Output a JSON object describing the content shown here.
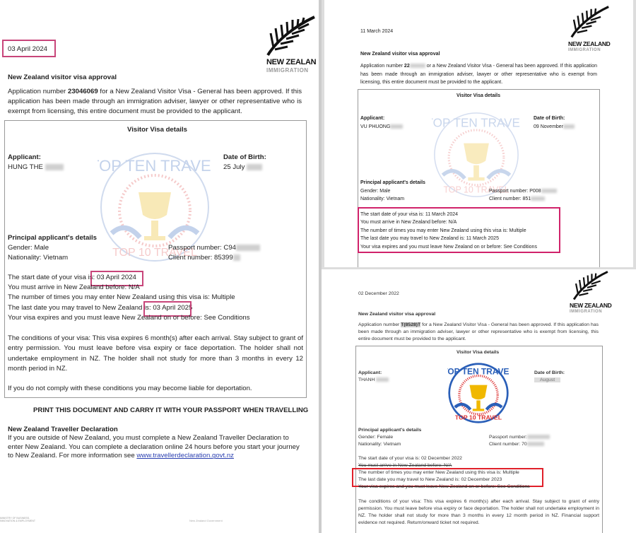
{
  "colors": {
    "highlight_pink": "#c8457a",
    "highlight_red": "#e0202a",
    "link": "#2a3fb0"
  },
  "logo": {
    "line1": "NEW ZEALAND",
    "line1_cropped": "NEW ZEALAN",
    "line2": "IMMIGRATION",
    "icon": "silver-fern-icon"
  },
  "watermark": {
    "top": "TOP TEN TRAVEL",
    "bottom": "TOP 10 TRAVEL",
    "icon": "trophy-icon"
  },
  "doc1": {
    "date": "03 April 2024",
    "title": "New Zealand visitor visa approval",
    "intro_prefix": "Application number ",
    "app_number": "23046069",
    "intro_rest": " for a New Zealand Visitor Visa - General has been approved. If this application has been made through an immigration adviser, lawyer or other representative who is exempt from licensing, this entire document must be provided to the applicant.",
    "box_title": "Visitor Visa details",
    "applicant_label": "Applicant:",
    "applicant": "HUNG THE",
    "dob_label": "Date of Birth:",
    "dob": "25 July",
    "principal_label": "Principal applicant's details",
    "gender": "Gender: Male",
    "nationality": "Nationality: Vietnam",
    "passport": "Passport number: C94",
    "client": "Client number: 85399",
    "start_label": "The start date of your visa is:",
    "start_value": "03 April 2024",
    "arrive": "You must arrive in New Zealand before: N/A",
    "entries": "The number of times you may enter New Zealand using this visa is: Multiple",
    "last_label": "The last date you may travel to New Zealand is:",
    "last_value": "03 April 2025",
    "expires": "Your visa expires and you must leave New Zealand on or before: See Conditions",
    "conditions": "The conditions of your visa: This visa expires 6 month(s) after each arrival.  Stay subject to grant of entry permission. You must leave before visa expiry or face deportation. The holder shall not undertake employment in NZ. The holder shall not study for more than 3 months in every 12 month period in NZ.",
    "comply": "If you do not comply with these conditions you may become liable for deportation.",
    "print": "PRINT THIS DOCUMENT AND CARRY IT WITH YOUR PASSPORT WHEN TRAVELLING",
    "decl_title": "New Zealand Traveller Declaration",
    "decl_text": "If you are outside of New Zealand, you must complete a New Zealand Traveller Declaration to enter New Zealand. You can complete a declaration online 24 hours before you start your journey to New Zealand. For more information see ",
    "decl_link": "www.travellerdeclaration.govt.nz",
    "footer_left": "MINISTRY OF BUSINESS, INNOVATION & EMPLOYMENT",
    "footer_right": "New Zealand Government"
  },
  "doc2": {
    "date": "11 March 2024",
    "title": "New Zealand visitor visa approval",
    "intro_prefix": "Application number ",
    "app_number": "22",
    "intro_rest": " or a New Zealand Visitor Visa - General has been approved. If this application has been made through an immigration adviser, lawyer or other representative who is exempt from licensing, this entire document must be provided to the applicant.",
    "box_title": "Visitor Visa details",
    "applicant_label": "Applicant:",
    "applicant": "VU PHUONG",
    "dob_label": "Date of Birth:",
    "dob": "09 November",
    "principal_label": "Principal applicant's details",
    "gender": "Gender: Male",
    "nationality": "Nationality: Vietnam",
    "passport": "Passport number: P008",
    "client": "Client number: 851",
    "start": "The start date of your visa is: 11 March 2024",
    "arrive": "You must arrive in New Zealand before: N/A",
    "entries": "The number of times you may enter New Zealand using this visa is: Multiple",
    "last": "The last date you may travel to New Zealand is: 11 March 2025",
    "expires": "Your visa expires and you must leave New Zealand on or before: See Conditions"
  },
  "doc3": {
    "date": "02 December 2022",
    "title": "New Zealand visitor visa approval",
    "intro_prefix": "Application number ",
    "app_number": "T(8528)T",
    "intro_rest": " for a New Zealand Visitor Visa - General has been approved. If this application has been made through an immigration adviser, lawyer or other representative who is exempt from licensing, this entire document must be provided to the applicant.",
    "box_title": "Visitor Visa details",
    "applicant_label": "Applicant:",
    "applicant": "THANH",
    "dob_label": "Date of Birth:",
    "dob": "August",
    "principal_label": "Principal applicant's details",
    "gender": "Gender: Female",
    "nationality": "Nationality: Vietnam",
    "passport": "Passport number:",
    "client": "Client number: 70",
    "start": "The start date of your visa is: 02 December 2022",
    "arrive": "You must arrive in New Zealand before: N/A",
    "entries": "The number of times you may enter New Zealand using this visa is: Multiple",
    "last": "The last date you may travel to New Zealand is: 02 December 2023",
    "expires": "Your visa expires and you must leave New Zealand on or before: See Conditions",
    "conditions": "The conditions of your visa: This visa expires 6 month(s) after each arrival.  Stay subject to grant of entry permission. You must leave before visa expiry or face deportation. The holder shall not undertake employment in NZ. The holder shall not study for more than 3 months in every 12 month period in NZ.  Financial support evidence not required. Return/onward ticket not required."
  }
}
